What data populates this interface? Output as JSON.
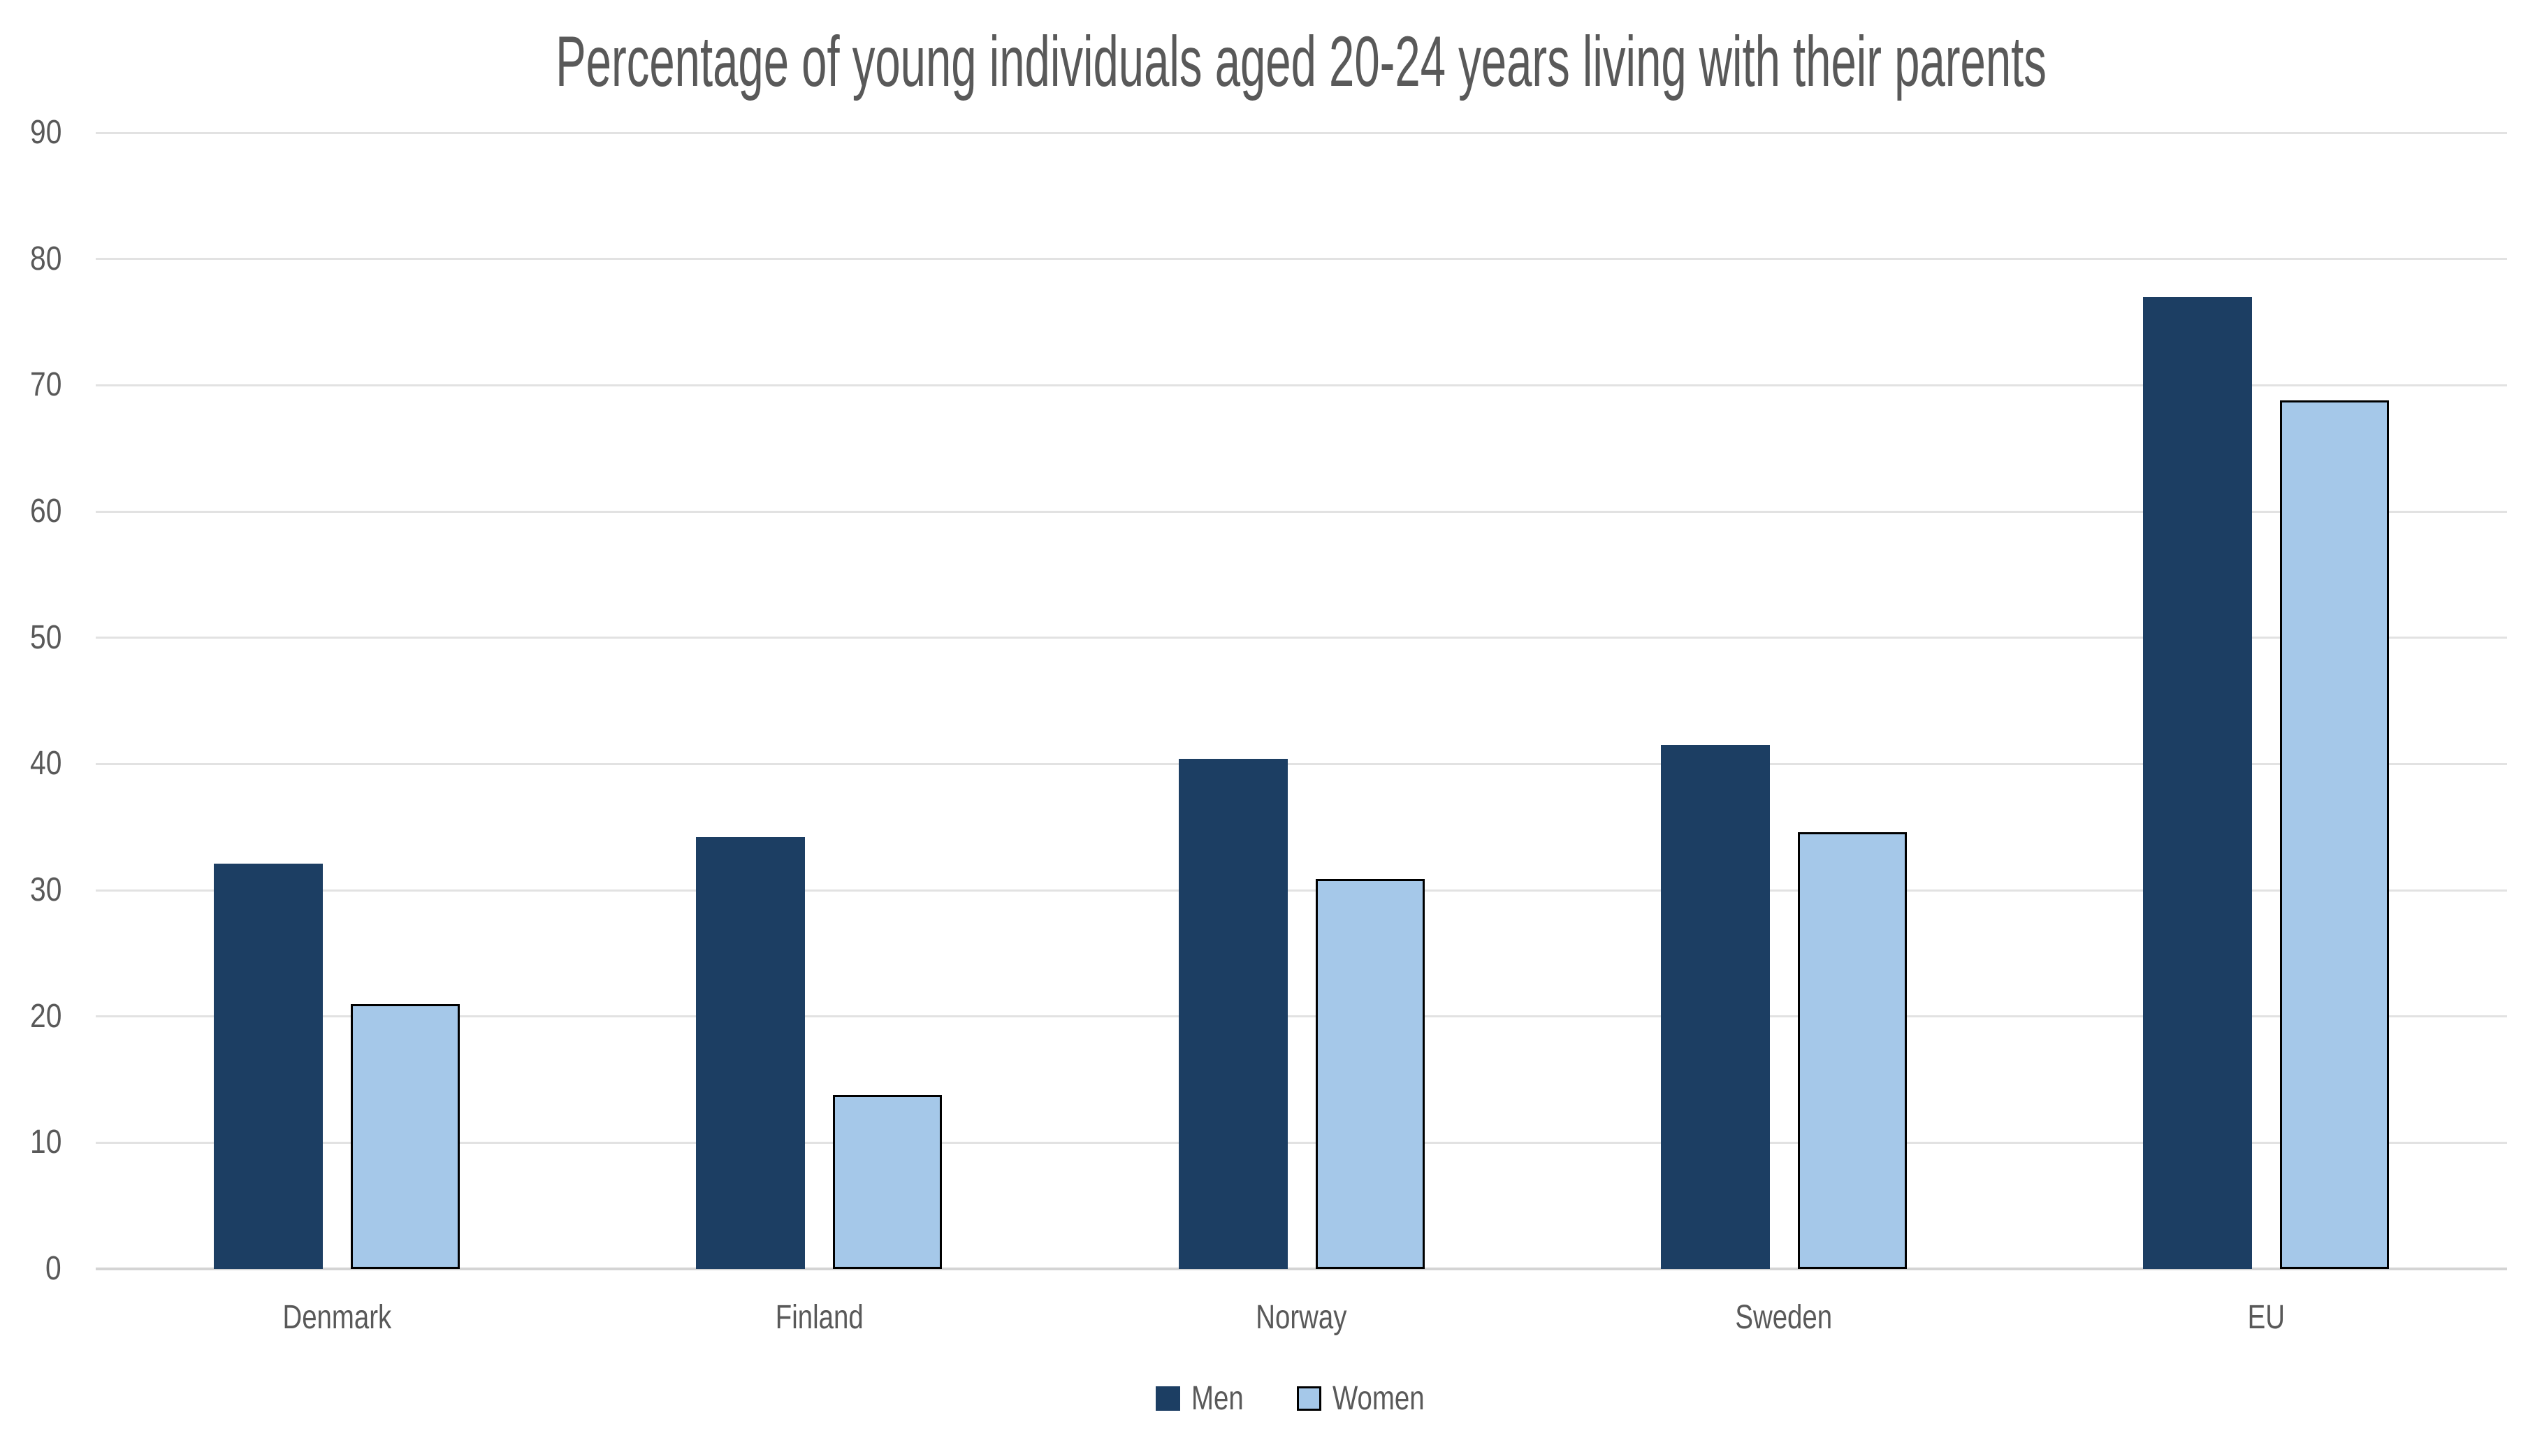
{
  "chart_data": {
    "type": "bar",
    "title": "Percentage of young individuals aged 20-24 years living with their parents",
    "categories": [
      "Denmark",
      "Finland",
      "Norway",
      "Sweden",
      "EU"
    ],
    "series": [
      {
        "name": "Men",
        "values": [
          32.1,
          34.2,
          40.4,
          41.5,
          77.0
        ]
      },
      {
        "name": "Women",
        "values": [
          21.0,
          13.8,
          30.9,
          34.6,
          68.8
        ]
      }
    ],
    "ylim": [
      0,
      90
    ],
    "y_ticks": [
      0,
      10,
      20,
      30,
      40,
      50,
      60,
      70,
      80,
      90
    ],
    "xlabel": "",
    "ylabel": "",
    "grid": true,
    "legend_position": "bottom"
  },
  "legend": {
    "items": [
      {
        "label": "Men",
        "color": "#1C3E63",
        "border": ""
      },
      {
        "label": "Women",
        "color": "#A5C8E9",
        "border": "#000000"
      }
    ]
  },
  "colors": {
    "men_bar": "#1C3E63",
    "women_bar": "#A5C8E9",
    "women_bar_border": "#000000",
    "text": "#595959",
    "gridline": "#E2E2E2",
    "axis_line": "#D4D4D4",
    "background": "#FFFFFF"
  }
}
